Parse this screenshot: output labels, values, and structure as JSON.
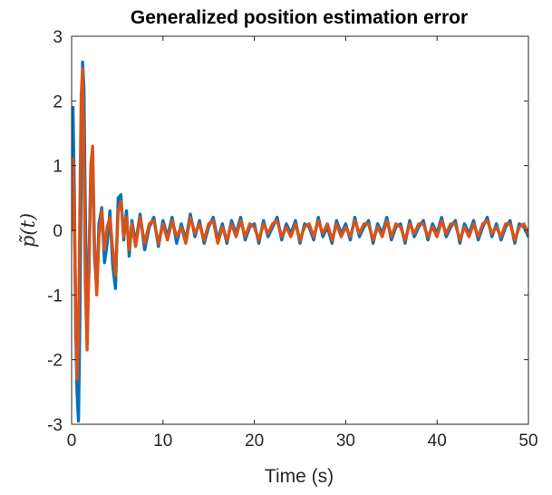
{
  "chart_data": {
    "type": "line",
    "title": "Generalized position estimation error",
    "xlabel": "Time (s)",
    "ylabel": "p̃(t)",
    "xlim": [
      0,
      50
    ],
    "ylim": [
      -3,
      3
    ],
    "x_ticks": [
      0,
      10,
      20,
      30,
      40,
      50
    ],
    "y_ticks": [
      -3,
      -2,
      -1,
      0,
      1,
      2,
      3
    ],
    "grid": false,
    "box": true,
    "series": [
      {
        "color": "#0072BD",
        "x": [
          0,
          0.15,
          0.3,
          0.45,
          0.6,
          0.75,
          0.9,
          1.05,
          1.2,
          1.35,
          1.5,
          1.7,
          1.9,
          2.1,
          2.3,
          2.5,
          2.75,
          3.0,
          3.3,
          3.6,
          3.9,
          4.2,
          4.5,
          4.8,
          5.1,
          5.4,
          5.7,
          6.0,
          6.3,
          6.6,
          7.0,
          7.5,
          8,
          8.5,
          9,
          9.5,
          10,
          10.5,
          11,
          11.5,
          12,
          12.5,
          13,
          13.5,
          14,
          14.5,
          15,
          15.5,
          16,
          16.5,
          17,
          17.5,
          18,
          18.5,
          19,
          19.5,
          20,
          20.5,
          21,
          21.5,
          22,
          22.5,
          23,
          23.5,
          24,
          24.5,
          25,
          25.5,
          26,
          26.5,
          27,
          27.5,
          28,
          28.5,
          29,
          29.5,
          30,
          30.5,
          31,
          31.5,
          32,
          32.5,
          33,
          33.5,
          34,
          34.5,
          35,
          35.5,
          36,
          36.5,
          37,
          37.5,
          38,
          38.5,
          39,
          39.5,
          40,
          40.5,
          41,
          41.5,
          42,
          42.5,
          43,
          43.5,
          44,
          44.5,
          45,
          45.5,
          46,
          46.5,
          47,
          47.5,
          48,
          48.5,
          49,
          49.5,
          50
        ],
        "y": [
          0.1,
          1.9,
          0.6,
          -1.5,
          -2.5,
          -2.95,
          -1.4,
          0.9,
          2.6,
          2.2,
          0.3,
          -1.4,
          -0.6,
          0.9,
          1.1,
          -0.4,
          -0.9,
          0.1,
          0.35,
          -0.5,
          -0.2,
          0.3,
          -0.55,
          -0.9,
          0.5,
          0.55,
          -0.15,
          0.3,
          -0.4,
          0.15,
          -0.2,
          0.25,
          -0.3,
          0.05,
          0.2,
          -0.25,
          0.15,
          -0.1,
          0.2,
          -0.2,
          0.1,
          -0.15,
          0.25,
          -0.1,
          0.15,
          -0.2,
          0.05,
          0.2,
          -0.15,
          0.1,
          -0.2,
          0.15,
          -0.05,
          0.2,
          -0.15,
          0.05,
          0.1,
          -0.2,
          0.15,
          -0.1,
          0.05,
          0.2,
          -0.15,
          0.1,
          -0.05,
          0.15,
          -0.2,
          0.1,
          0.05,
          -0.15,
          0.2,
          -0.1,
          0.05,
          -0.2,
          0.15,
          -0.05,
          0.1,
          -0.15,
          0.2,
          -0.1,
          0.05,
          0.15,
          -0.2,
          0.1,
          -0.05,
          0.2,
          -0.15,
          0.05,
          0.1,
          -0.2,
          0.15,
          -0.1,
          0.05,
          0.15,
          -0.15,
          0.1,
          -0.05,
          0.2,
          -0.1,
          0.05,
          0.15,
          -0.2,
          0.1,
          -0.05,
          0.15,
          -0.15,
          0.05,
          0.2,
          -0.1,
          0.1,
          -0.15,
          0.05,
          0.15,
          -0.2,
          0.1,
          0.05,
          -0.1
        ]
      },
      {
        "color": "#D95319",
        "x": [
          0,
          0.15,
          0.3,
          0.45,
          0.6,
          0.75,
          0.9,
          1.05,
          1.2,
          1.35,
          1.5,
          1.7,
          1.9,
          2.1,
          2.3,
          2.5,
          2.75,
          3.0,
          3.3,
          3.6,
          3.9,
          4.2,
          4.5,
          4.8,
          5.1,
          5.4,
          5.7,
          6.0,
          6.3,
          6.6,
          7.0,
          7.5,
          8,
          8.5,
          9,
          9.5,
          10,
          10.5,
          11,
          11.5,
          12,
          12.5,
          13,
          13.5,
          14,
          14.5,
          15,
          15.5,
          16,
          16.5,
          17,
          17.5,
          18,
          18.5,
          19,
          19.5,
          20,
          20.5,
          21,
          21.5,
          22,
          22.5,
          23,
          23.5,
          24,
          24.5,
          25,
          25.5,
          26,
          26.5,
          27,
          27.5,
          28,
          28.5,
          29,
          29.5,
          30,
          30.5,
          31,
          31.5,
          32,
          32.5,
          33,
          33.5,
          34,
          34.5,
          35,
          35.5,
          36,
          36.5,
          37,
          37.5,
          38,
          38.5,
          39,
          39.5,
          40,
          40.5,
          41,
          41.5,
          42,
          42.5,
          43,
          43.5,
          44,
          44.5,
          45,
          45.5,
          46,
          46.5,
          47,
          47.5,
          48,
          48.5,
          49,
          49.5,
          50
        ],
        "y": [
          0.0,
          1.1,
          0.2,
          -1.2,
          -2.3,
          -1.6,
          0.3,
          2.1,
          2.5,
          1.2,
          -0.8,
          -1.85,
          -0.5,
          1.0,
          1.3,
          -0.2,
          -1.0,
          -0.1,
          0.3,
          -0.3,
          0.05,
          0.2,
          -0.3,
          -0.7,
          0.3,
          0.45,
          -0.1,
          0.2,
          -0.3,
          0.1,
          -0.25,
          0.2,
          -0.2,
          0.1,
          0.15,
          -0.2,
          0.1,
          -0.15,
          0.15,
          -0.1,
          0.05,
          -0.2,
          0.2,
          -0.05,
          0.1,
          -0.15,
          0.1,
          0.15,
          -0.2,
          0.05,
          -0.15,
          0.1,
          -0.1,
          0.15,
          -0.1,
          0.1,
          0.05,
          -0.15,
          0.1,
          -0.05,
          0.1,
          0.15,
          -0.1,
          0.05,
          -0.1,
          0.1,
          -0.15,
          0.05,
          0.1,
          -0.1,
          0.15,
          -0.05,
          0.1,
          -0.15,
          0.1,
          -0.1,
          0.05,
          -0.1,
          0.15,
          -0.05,
          0.1,
          0.1,
          -0.15,
          0.05,
          -0.1,
          0.15,
          -0.1,
          0.1,
          0.05,
          -0.15,
          0.1,
          -0.05,
          0.1,
          0.1,
          -0.1,
          0.05,
          -0.1,
          0.15,
          -0.05,
          0.1,
          0.1,
          -0.15,
          0.05,
          -0.1,
          0.1,
          -0.1,
          0.1,
          0.15,
          -0.05,
          0.05,
          -0.1,
          0.1,
          0.1,
          -0.15,
          0.05,
          0.1,
          -0.05
        ]
      }
    ]
  }
}
